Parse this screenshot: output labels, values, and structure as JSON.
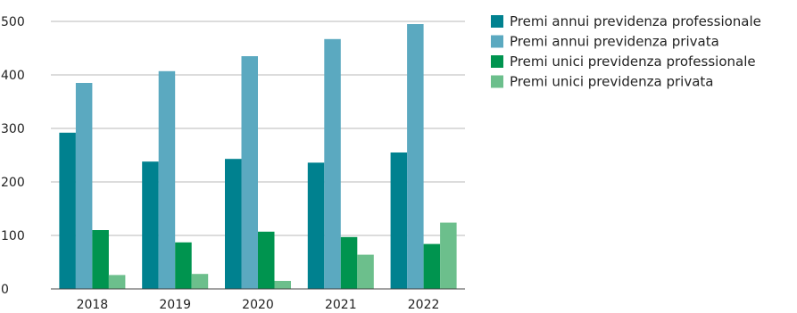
{
  "chart_data": {
    "type": "bar",
    "categories": [
      "2018",
      "2019",
      "2020",
      "2021",
      "2022"
    ],
    "ylim": [
      0,
      500
    ],
    "yticks": [
      0,
      100,
      200,
      300,
      400,
      500
    ],
    "grid": true,
    "legend_position": "right",
    "series": [
      {
        "name": "Premi annui previdenza professionale",
        "color": "#00818f",
        "values": [
          292,
          238,
          243,
          236,
          255
        ]
      },
      {
        "name": "Premi annui previdenza privata",
        "color": "#5ba9c0",
        "values": [
          385,
          407,
          435,
          467,
          495
        ]
      },
      {
        "name": "Premi unici previdenza professionale",
        "color": "#00944f",
        "values": [
          110,
          87,
          107,
          97,
          84
        ]
      },
      {
        "name": "Premi unici previdenza privata",
        "color": "#6cbf8c",
        "values": [
          26,
          28,
          15,
          64,
          124
        ]
      }
    ]
  }
}
